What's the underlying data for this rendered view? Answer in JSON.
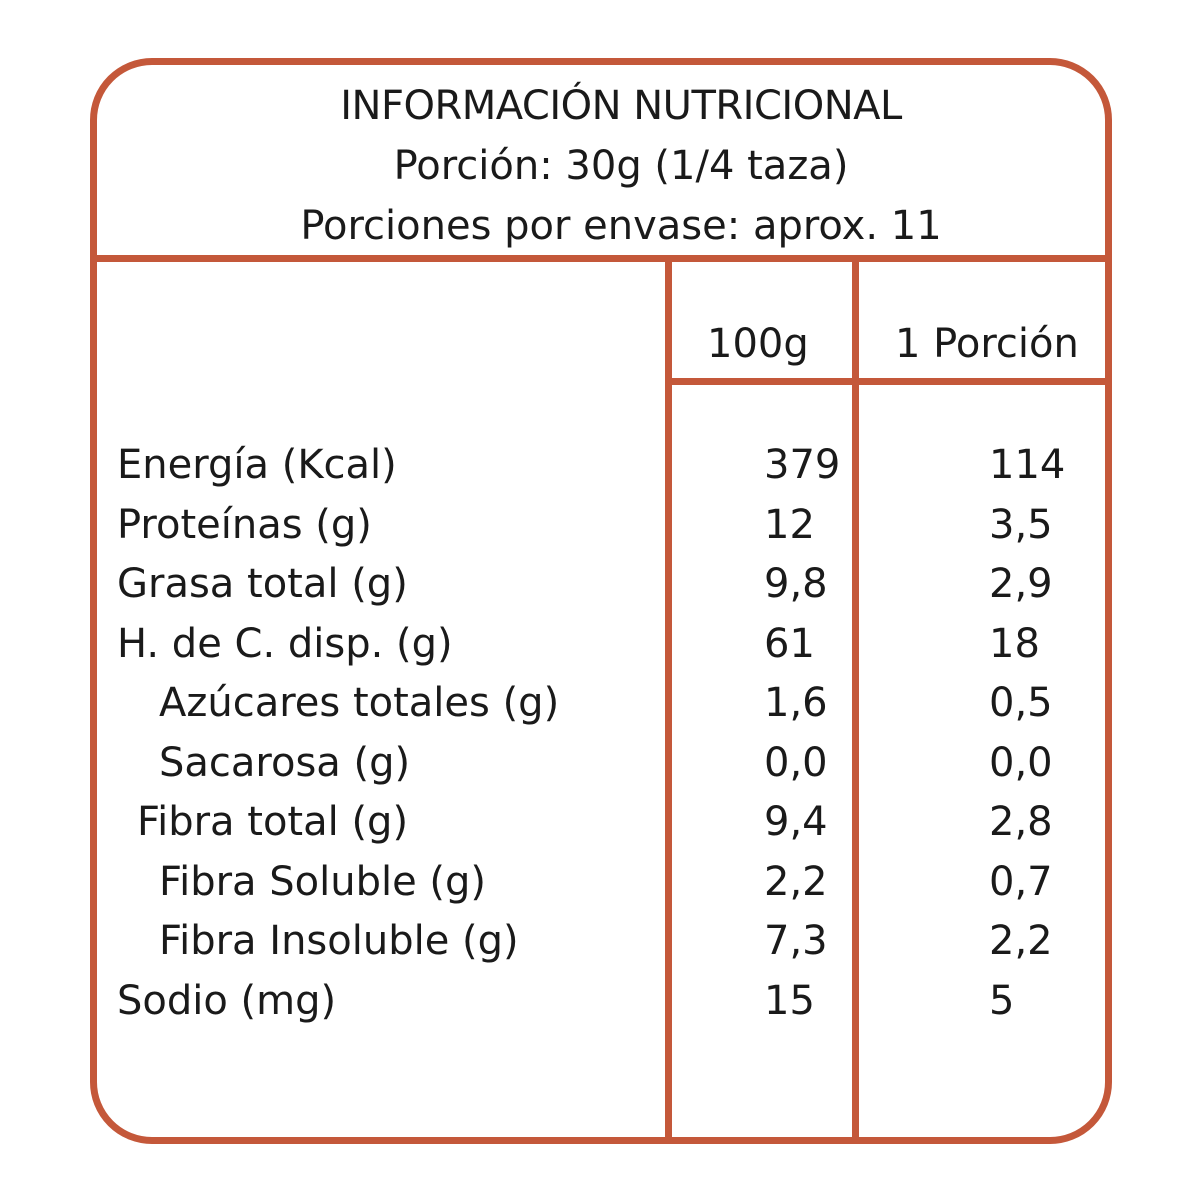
{
  "header": {
    "title": "INFORMACIÓN NUTRICIONAL",
    "portion": "Porción: 30g (1/4  taza)",
    "servings": "Porciones por envase: aprox. 11"
  },
  "columns": {
    "per_100g": "100g",
    "per_portion": "1 Porción"
  },
  "colors": {
    "border": "#c4583a",
    "text": "#1a1a1a"
  },
  "rows": [
    {
      "name": "Energía (Kcal)",
      "per_100g": "379",
      "per_portion": "114",
      "indent": 0
    },
    {
      "name": "Proteínas (g)",
      "per_100g": "12",
      "per_portion": "3,5",
      "indent": 0
    },
    {
      "name": "Grasa total (g)",
      "per_100g": "9,8",
      "per_portion": "2,9",
      "indent": 0
    },
    {
      "name": "H. de C. disp. (g)",
      "per_100g": "61",
      "per_portion": "18",
      "indent": 0
    },
    {
      "name": "Azúcares totales (g)",
      "per_100g": "1,6",
      "per_portion": "0,5",
      "indent": 2
    },
    {
      "name": "Sacarosa (g)",
      "per_100g": "0,0",
      "per_portion": "0,0",
      "indent": 2
    },
    {
      "name": "Fibra total (g)",
      "per_100g": "9,4",
      "per_portion": "2,8",
      "indent": 1
    },
    {
      "name": "Fibra Soluble (g)",
      "per_100g": "2,2",
      "per_portion": "0,7",
      "indent": 2
    },
    {
      "name": "Fibra Insoluble (g)",
      "per_100g": "7,3",
      "per_portion": "2,2",
      "indent": 2
    },
    {
      "name": "Sodio (mg)",
      "per_100g": "15",
      "per_portion": "5",
      "indent": 0
    }
  ]
}
